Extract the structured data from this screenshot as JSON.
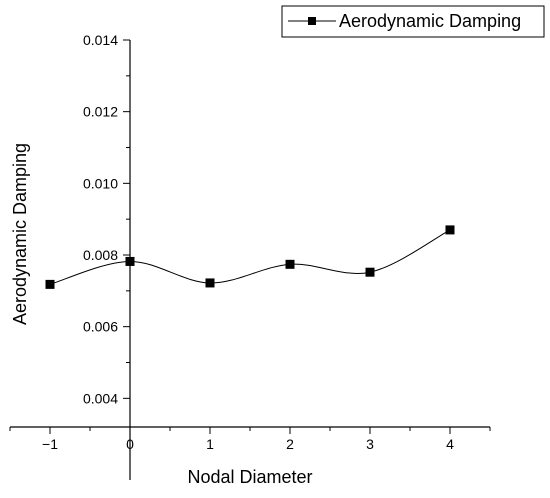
{
  "chart_data": {
    "type": "line",
    "title": "",
    "xlabel": "Nodal Diameter",
    "ylabel": "Aerodynamic Damping",
    "x": [
      -1,
      0,
      1,
      2,
      3,
      4
    ],
    "series": [
      {
        "name": "Aerodynamic Damping",
        "values": [
          0.00718,
          0.00782,
          0.00722,
          0.00774,
          0.00752,
          0.0087
        ]
      }
    ],
    "xlim": [
      -1.5,
      4.5
    ],
    "ylim": [
      0.0032,
      0.014
    ],
    "x_ticks": [
      "−1",
      "0",
      "1",
      "2",
      "3",
      "4"
    ],
    "y_ticks": [
      "0.004",
      "0.006",
      "0.008",
      "0.010",
      "0.012",
      "0.014"
    ],
    "x_tick_values": [
      -1,
      0,
      1,
      2,
      3,
      4
    ],
    "y_tick_values": [
      0.004,
      0.006,
      0.008,
      0.01,
      0.012,
      0.014
    ],
    "line_style": "smooth spline",
    "marker": "filled square",
    "grid": false,
    "legend_position": "top-right"
  }
}
